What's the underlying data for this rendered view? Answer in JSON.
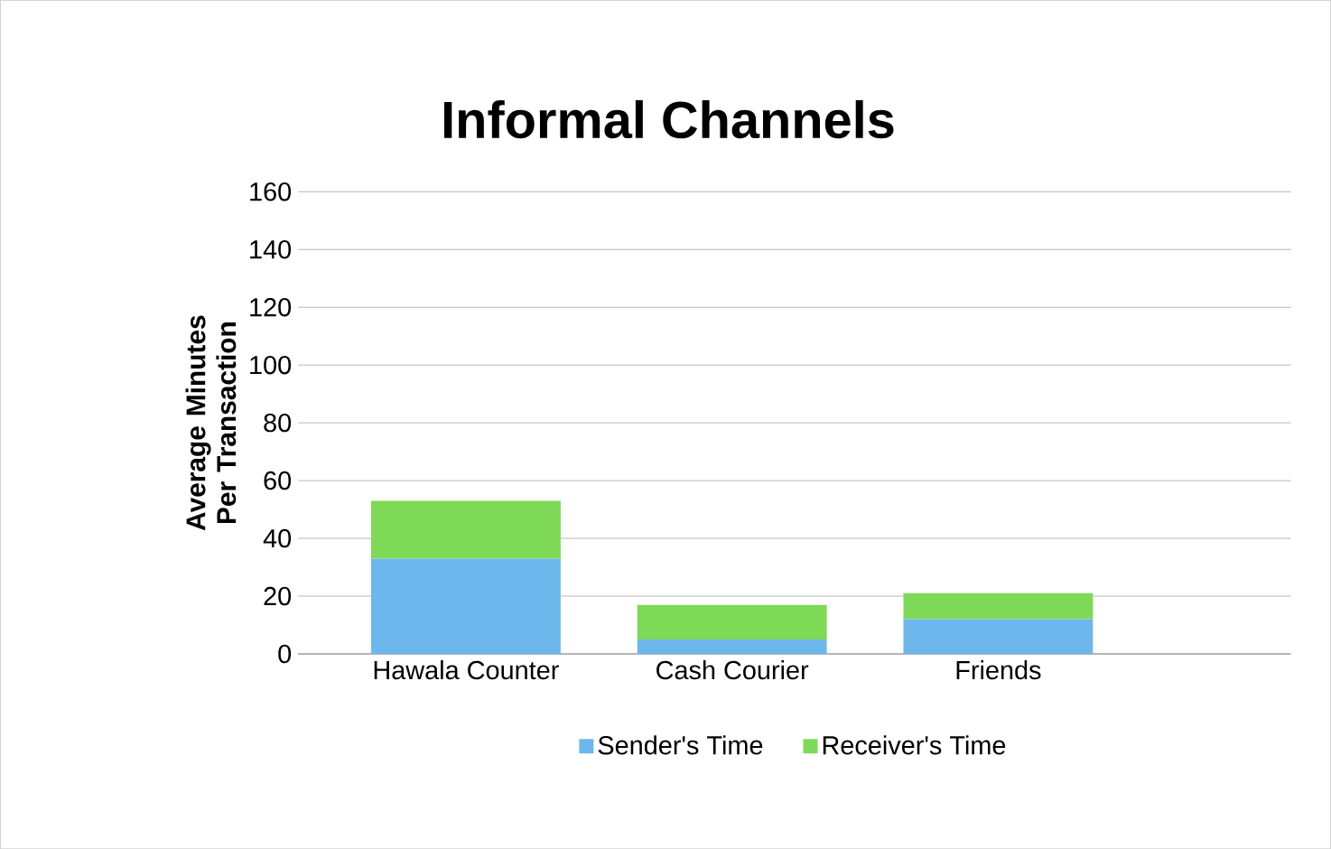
{
  "chart_data": {
    "type": "bar",
    "title": "Informal Channels",
    "ylabel": "Average Minutes Per Transaction",
    "categories": [
      "Hawala Counter",
      "Cash Courier",
      "Friends"
    ],
    "series": [
      {
        "name": "Sender's Time",
        "color": "#6cb8ec",
        "values": [
          33,
          5,
          12
        ]
      },
      {
        "name": "Receiver's Time",
        "color": "#7ed957",
        "values": [
          20,
          12,
          9
        ]
      }
    ],
    "stacked": true,
    "ylim": [
      0,
      160
    ],
    "yticks": [
      0,
      20,
      40,
      60,
      80,
      100,
      120,
      140,
      160
    ],
    "grid": "y",
    "legend": "bottom"
  }
}
